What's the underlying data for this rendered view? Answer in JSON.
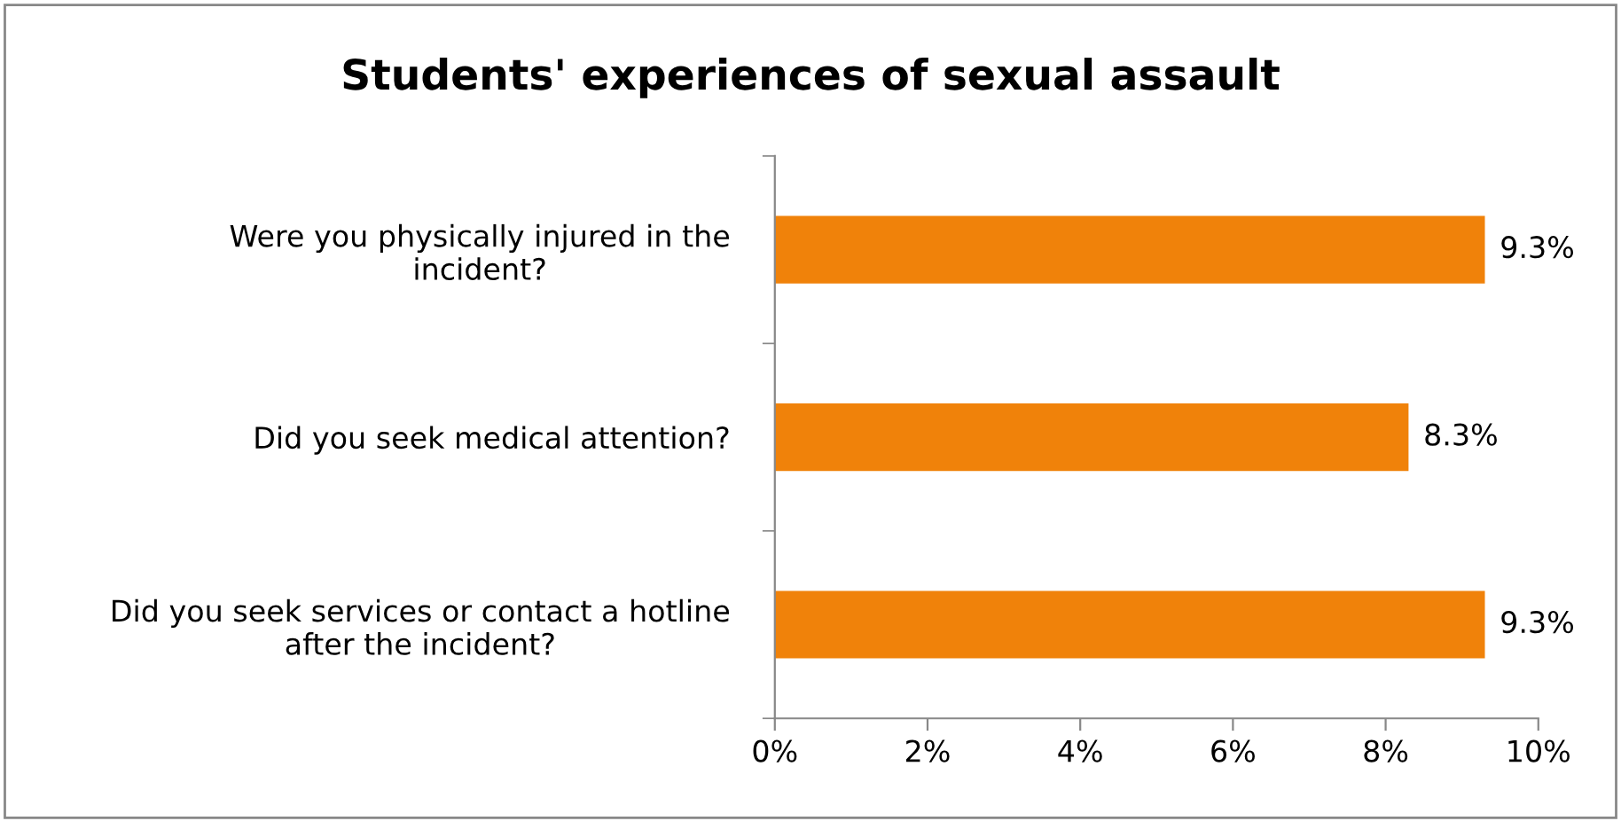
{
  "chart_data": {
    "type": "bar",
    "orientation": "horizontal",
    "title": "Students' experiences of sexual assault",
    "categories": [
      "Were you physically injured in the\nincident?",
      "Did you seek medical attention?",
      "Did you seek services or contact a hotline\nafter the incident?"
    ],
    "values": [
      9.3,
      8.3,
      9.3
    ],
    "color": "#f0820a",
    "value_labels": [
      "9.3%",
      "8.3%",
      "9.3%"
    ],
    "xlim": [
      0,
      10
    ],
    "xticks": [
      {
        "value": 0,
        "label": "0%"
      },
      {
        "value": 2,
        "label": "2%"
      },
      {
        "value": 4,
        "label": "4%"
      },
      {
        "value": 6,
        "label": "6%"
      },
      {
        "value": 8,
        "label": "8%"
      },
      {
        "value": 10,
        "label": "10%"
      }
    ],
    "grid": false,
    "legend": false
  }
}
